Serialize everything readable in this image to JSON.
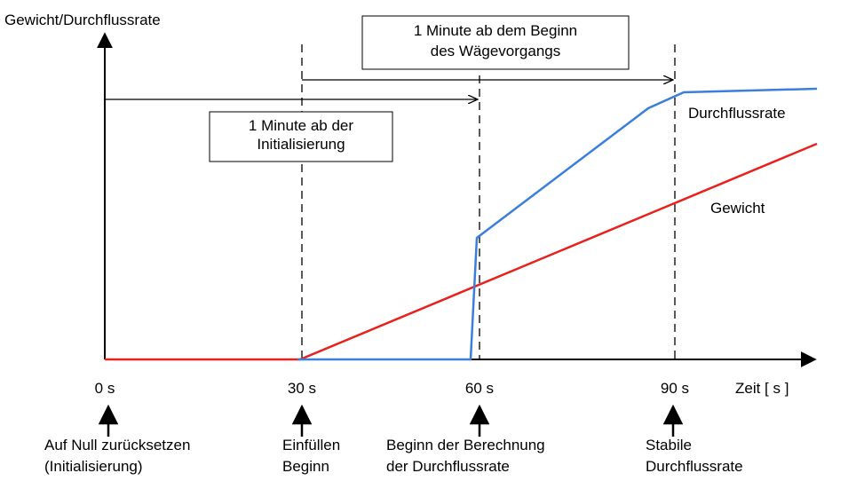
{
  "y_axis_label": "Gewicht/Durchflussrate",
  "x_axis_label": "Zeit [ s ]",
  "time_labels": [
    "0 s",
    "30 s",
    "60 s",
    "90 s"
  ],
  "annotations": [
    {
      "lines": [
        "1 Minute ab dem Beginn",
        "des Wägevorgangs"
      ]
    },
    {
      "lines": [
        "1 Minute ab der",
        "Initialisierung"
      ]
    }
  ],
  "curves": [
    "Durchflussrate",
    "Gewicht"
  ],
  "events": [
    {
      "lines": [
        "Auf Null zurücksetzen",
        "(Initialisierung)"
      ]
    },
    {
      "lines": [
        "Einfüllen",
        "Beginn"
      ]
    },
    {
      "lines": [
        "Beginn der Berechnung",
        "der Durchflussrate"
      ]
    },
    {
      "lines": [
        "Stabile",
        "Durchflussrate"
      ]
    }
  ]
}
